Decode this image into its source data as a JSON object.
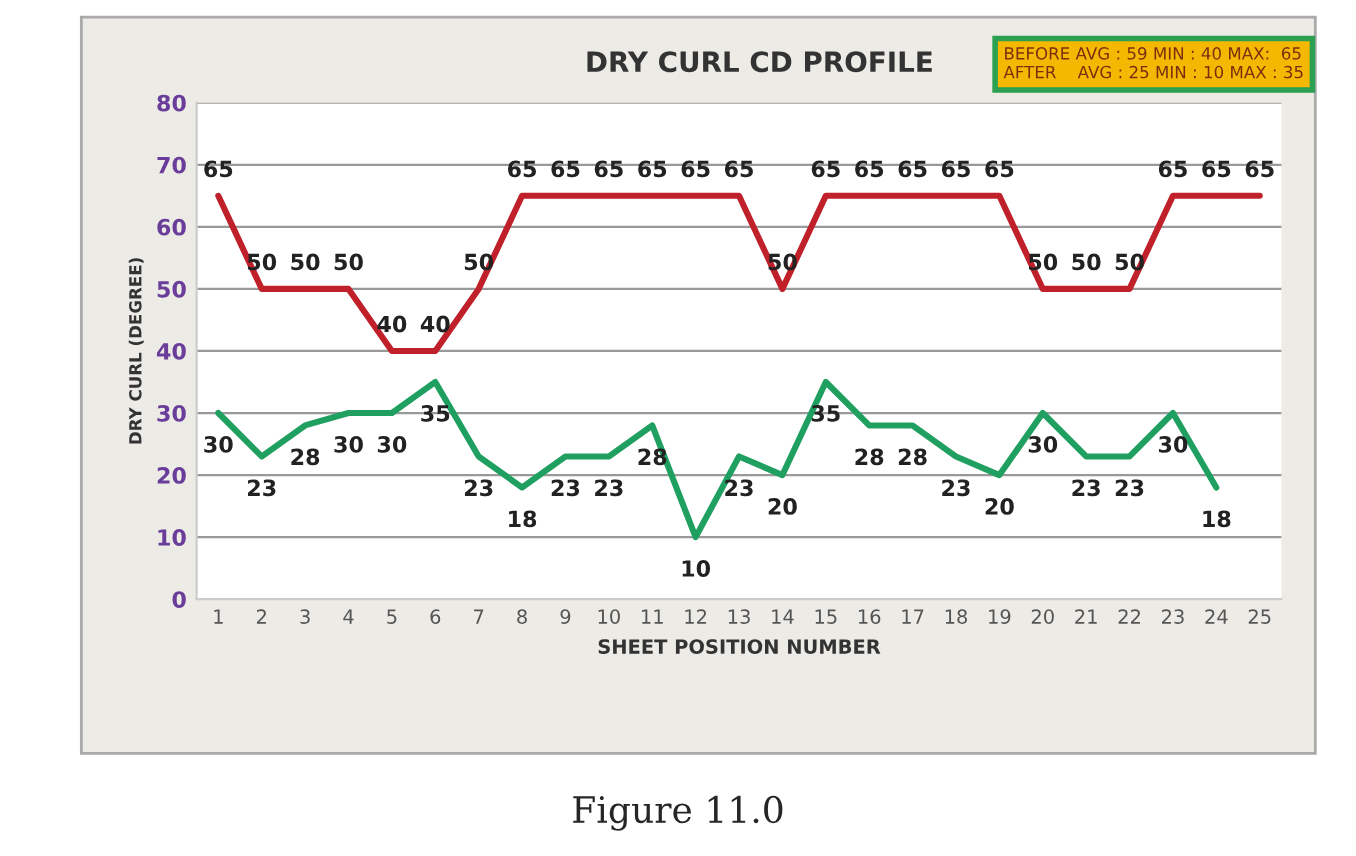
{
  "chart_data": {
    "type": "line",
    "title": "DRY CURL CD PROFILE",
    "xlabel": "SHEET POSITION NUMBER",
    "ylabel": "DRY CURL (DEGREE)",
    "categories": [
      "1",
      "2",
      "3",
      "4",
      "5",
      "6",
      "7",
      "8",
      "9",
      "10",
      "11",
      "12",
      "13",
      "14",
      "15",
      "16",
      "17",
      "18",
      "19",
      "20",
      "21",
      "22",
      "23",
      "24",
      "25"
    ],
    "series": [
      {
        "color": "#c0202a",
        "values": [
          65,
          50,
          50,
          50,
          40,
          40,
          50,
          65,
          65,
          65,
          65,
          65,
          65,
          50,
          65,
          65,
          65,
          65,
          65,
          50,
          50,
          50,
          65,
          65,
          65
        ]
      },
      {
        "color": "#1fa060",
        "values": [
          30,
          23,
          28,
          30,
          30,
          35,
          23,
          18,
          23,
          23,
          28,
          10,
          23,
          20,
          35,
          28,
          28,
          23,
          20,
          30,
          23,
          23,
          30,
          18,
          null
        ]
      }
    ],
    "ylim": [
      0,
      80
    ],
    "yticks": [
      0,
      10,
      20,
      30,
      40,
      50,
      60,
      70,
      80
    ],
    "grid": "y",
    "data_labels": true,
    "marker": "none",
    "line_style": "solid",
    "annotations": [
      "BEFORE AVG : 59 MIN : 40 MAX:  65\nAFTER    AVG : 25 MIN : 10 MAX : 35",
      "Figure 11.0"
    ]
  }
}
